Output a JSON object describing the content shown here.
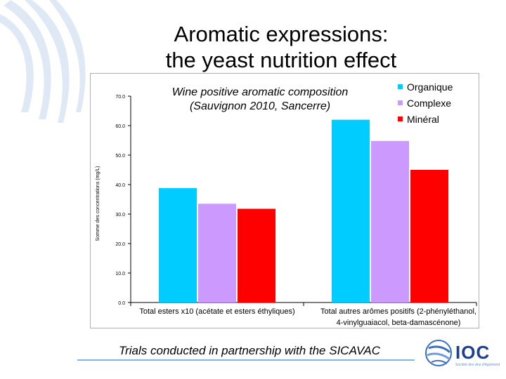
{
  "slide": {
    "title_line1": "Aromatic expressions:",
    "title_line2": "the yeast nutrition effect",
    "footnote": "Trials conducted in partnership with the SICAVAC",
    "logo_text": "IOC",
    "logo_sub": "Société des vins d'Agrément"
  },
  "chart_data": {
    "type": "bar",
    "title_line1": "Wine positive aromatic composition",
    "title_line2": "(Sauvignon 2010, Sancerre)",
    "ylabel": "Somme des concentrations (mg/L)",
    "ylim": [
      0,
      70
    ],
    "yticks": [
      "0.0",
      "10.0",
      "20.0",
      "30.0",
      "40.0",
      "50.0",
      "60.0",
      "70.0"
    ],
    "categories": [
      {
        "line1": "Total esters x10 (acétate et esters éthyliques)",
        "line2": ""
      },
      {
        "line1": "Total autres arômes positifs (2-phényléthanol,",
        "line2": "4-vinylguaiacol, beta-damascénone)"
      }
    ],
    "series": [
      {
        "name": "Organique",
        "color": "#00ccff",
        "values": [
          38.8,
          62.0
        ]
      },
      {
        "name": "Complexe",
        "color": "#cc99ff",
        "values": [
          33.5,
          54.8
        ]
      },
      {
        "name": "Minéral",
        "color": "#ff0000",
        "values": [
          31.8,
          45.0
        ]
      }
    ]
  }
}
